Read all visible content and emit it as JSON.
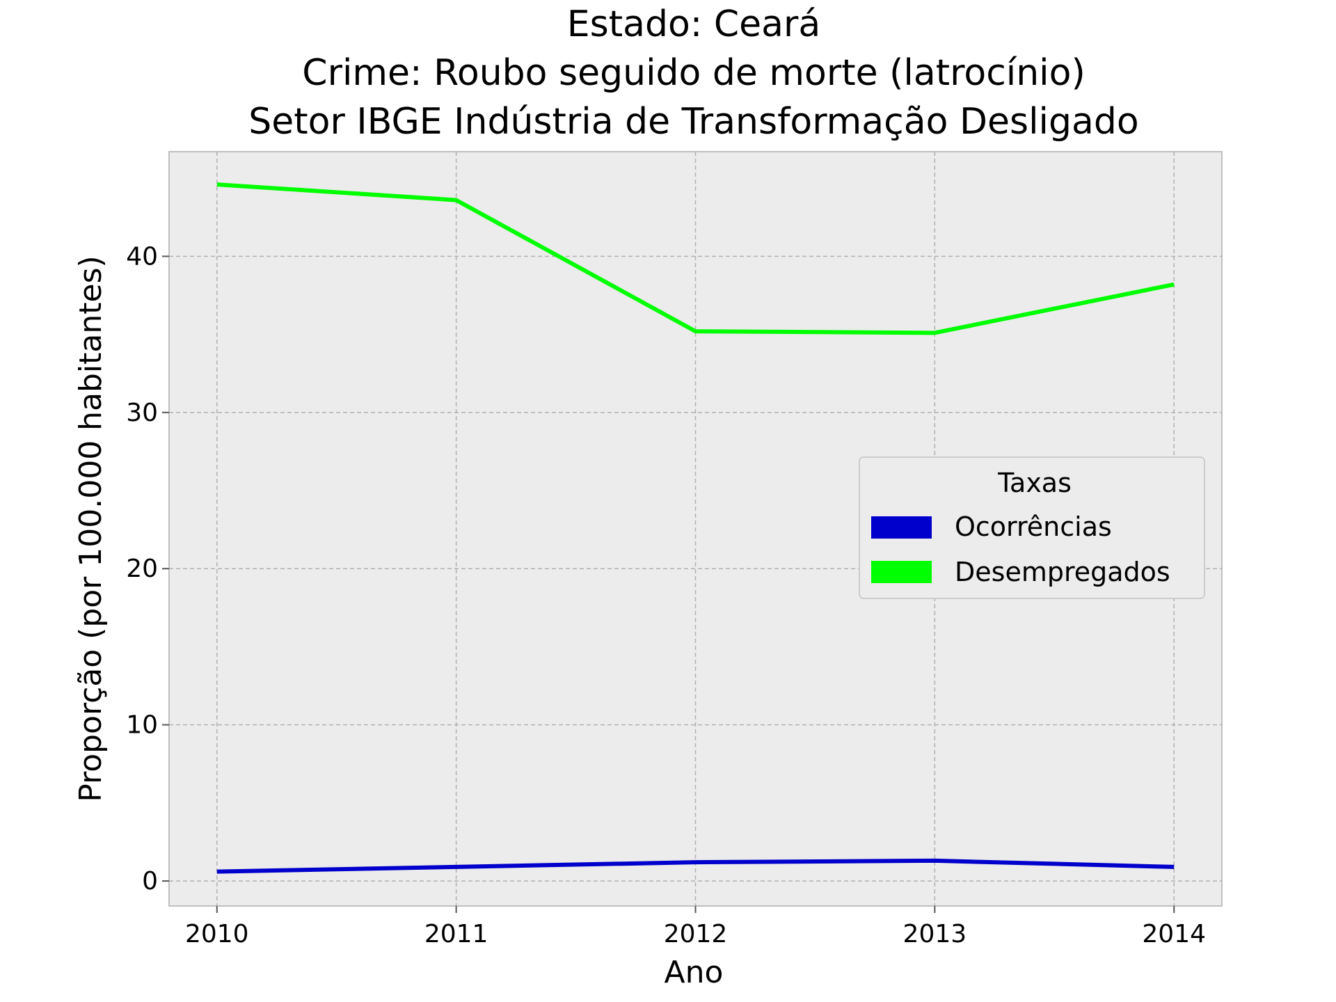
{
  "chart_data": {
    "type": "line",
    "title_lines": [
      "Estado: Ceará",
      "Crime: Roubo seguido de morte (latrocínio)",
      "Setor IBGE  Indústria de Transformação   Desligado"
    ],
    "xlabel": "Ano",
    "ylabel": "Proporção (por 100.000 habitantes)",
    "x": [
      2010,
      2011,
      2012,
      2013,
      2014
    ],
    "x_tick_labels": [
      "2010",
      "2011",
      "2012",
      "2013",
      "2014"
    ],
    "y_ticks": [
      0,
      10,
      20,
      30,
      40
    ],
    "y_tick_labels": [
      "0",
      "10",
      "20",
      "30",
      "40"
    ],
    "xlim": [
      2009.8,
      2014.2
    ],
    "ylim": [
      -1.6,
      46.7
    ],
    "grid": true,
    "legend": {
      "title": "Taxas",
      "placement": "center-right"
    },
    "series": [
      {
        "name": "Ocorrências",
        "color": "#0000cc",
        "values": [
          0.6,
          0.9,
          1.2,
          1.3,
          0.9
        ]
      },
      {
        "name": "Desempregados",
        "color": "#00ff00",
        "values": [
          44.6,
          43.6,
          35.2,
          35.1,
          38.2
        ]
      }
    ]
  }
}
